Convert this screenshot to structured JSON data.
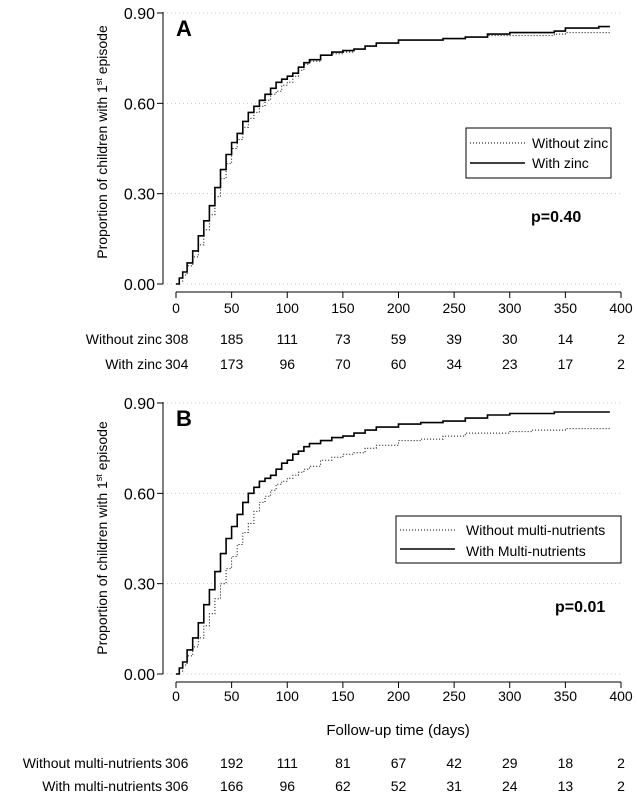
{
  "chart_data": [
    {
      "type": "line",
      "panel_label": "A",
      "ylabel": "Proportion of children with 1",
      "ylabel_sup": "st",
      "ylabel_tail": " episode",
      "xlabel": "",
      "xlim": [
        0,
        400
      ],
      "ylim": [
        0,
        0.9
      ],
      "xticks": [
        0,
        50,
        100,
        150,
        200,
        250,
        300,
        350,
        400
      ],
      "yticks": [
        0.0,
        0.3,
        0.6,
        0.9
      ],
      "ytick_labels": [
        "0.00",
        "0.30",
        "0.60",
        "0.90"
      ],
      "grid": "horizontal dotted",
      "legend_position": "center-right",
      "annotation": "p=0.40",
      "series": [
        {
          "name": "Without zinc",
          "style": "dotted",
          "x": [
            0,
            3,
            6,
            10,
            15,
            20,
            25,
            30,
            35,
            40,
            45,
            50,
            55,
            60,
            65,
            70,
            75,
            80,
            85,
            90,
            95,
            100,
            105,
            110,
            115,
            120,
            130,
            140,
            150,
            160,
            170,
            180,
            200,
            220,
            240,
            260,
            280,
            300,
            320,
            340,
            350,
            380,
            390
          ],
          "y": [
            0,
            0.01,
            0.03,
            0.06,
            0.09,
            0.13,
            0.18,
            0.23,
            0.29,
            0.35,
            0.4,
            0.45,
            0.48,
            0.52,
            0.55,
            0.57,
            0.59,
            0.61,
            0.63,
            0.64,
            0.66,
            0.67,
            0.69,
            0.71,
            0.73,
            0.74,
            0.76,
            0.765,
            0.77,
            0.78,
            0.79,
            0.8,
            0.81,
            0.81,
            0.815,
            0.82,
            0.825,
            0.825,
            0.825,
            0.83,
            0.835,
            0.835,
            0.835
          ]
        },
        {
          "name": "With zinc",
          "style": "solid",
          "x": [
            0,
            3,
            6,
            10,
            15,
            20,
            25,
            30,
            35,
            40,
            45,
            50,
            55,
            60,
            65,
            70,
            75,
            80,
            85,
            90,
            95,
            100,
            105,
            110,
            115,
            120,
            130,
            140,
            150,
            160,
            170,
            180,
            200,
            220,
            240,
            260,
            280,
            300,
            320,
            340,
            350,
            380,
            390
          ],
          "y": [
            0,
            0.02,
            0.04,
            0.07,
            0.11,
            0.16,
            0.21,
            0.26,
            0.32,
            0.38,
            0.43,
            0.47,
            0.5,
            0.54,
            0.57,
            0.59,
            0.61,
            0.63,
            0.65,
            0.67,
            0.68,
            0.69,
            0.7,
            0.72,
            0.735,
            0.745,
            0.76,
            0.77,
            0.775,
            0.78,
            0.79,
            0.8,
            0.81,
            0.81,
            0.815,
            0.82,
            0.83,
            0.835,
            0.835,
            0.84,
            0.85,
            0.855,
            0.855
          ]
        }
      ],
      "risk_table": {
        "x": [
          0,
          50,
          100,
          150,
          200,
          250,
          300,
          350,
          400
        ],
        "rows": [
          {
            "label": "Without zinc",
            "values": [
              "308",
              "185",
              "111",
              "73",
              "59",
              "39",
              "30",
              "14",
              "2"
            ]
          },
          {
            "label": "With zinc",
            "values": [
              "304",
              "173",
              "96",
              "70",
              "60",
              "34",
              "23",
              "17",
              "2"
            ]
          }
        ]
      }
    },
    {
      "type": "line",
      "panel_label": "B",
      "ylabel": "Proportion of children with 1",
      "ylabel_sup": "st",
      "ylabel_tail": " episode",
      "xlabel": "Follow-up time  (days)",
      "xlim": [
        0,
        400
      ],
      "ylim": [
        0,
        0.9
      ],
      "xticks": [
        0,
        50,
        100,
        150,
        200,
        250,
        300,
        350,
        400
      ],
      "yticks": [
        0.0,
        0.3,
        0.6,
        0.9
      ],
      "ytick_labels": [
        "0.00",
        "0.30",
        "0.60",
        "0.90"
      ],
      "grid": "horizontal dotted",
      "legend_position": "center-right",
      "annotation": "p=0.01",
      "series": [
        {
          "name": "Without multi-nutrients",
          "style": "dotted",
          "x": [
            0,
            3,
            6,
            10,
            15,
            20,
            25,
            30,
            35,
            40,
            45,
            50,
            55,
            60,
            65,
            70,
            75,
            80,
            85,
            90,
            95,
            100,
            105,
            110,
            115,
            120,
            130,
            140,
            150,
            160,
            170,
            180,
            200,
            220,
            240,
            260,
            280,
            300,
            320,
            340,
            350,
            380,
            390
          ],
          "y": [
            0,
            0.01,
            0.03,
            0.06,
            0.09,
            0.12,
            0.16,
            0.2,
            0.25,
            0.3,
            0.35,
            0.39,
            0.43,
            0.47,
            0.5,
            0.54,
            0.57,
            0.59,
            0.61,
            0.63,
            0.64,
            0.65,
            0.66,
            0.67,
            0.68,
            0.69,
            0.71,
            0.72,
            0.73,
            0.735,
            0.75,
            0.76,
            0.775,
            0.78,
            0.79,
            0.8,
            0.8,
            0.805,
            0.81,
            0.81,
            0.815,
            0.815,
            0.815
          ]
        },
        {
          "name": "With Multi-nutrients",
          "style": "solid",
          "x": [
            0,
            3,
            6,
            10,
            15,
            20,
            25,
            30,
            35,
            40,
            45,
            50,
            55,
            60,
            65,
            70,
            75,
            80,
            85,
            90,
            95,
            100,
            105,
            110,
            115,
            120,
            130,
            140,
            150,
            160,
            170,
            180,
            200,
            220,
            240,
            260,
            280,
            300,
            320,
            340,
            350,
            380,
            390
          ],
          "y": [
            0,
            0.02,
            0.04,
            0.08,
            0.12,
            0.17,
            0.23,
            0.28,
            0.34,
            0.4,
            0.45,
            0.49,
            0.53,
            0.57,
            0.6,
            0.62,
            0.64,
            0.65,
            0.66,
            0.68,
            0.7,
            0.71,
            0.73,
            0.74,
            0.755,
            0.765,
            0.775,
            0.785,
            0.79,
            0.8,
            0.81,
            0.82,
            0.83,
            0.835,
            0.84,
            0.85,
            0.86,
            0.865,
            0.865,
            0.87,
            0.87,
            0.87,
            0.87
          ]
        }
      ],
      "risk_table": {
        "x": [
          0,
          50,
          100,
          150,
          200,
          250,
          300,
          350,
          400
        ],
        "rows": [
          {
            "label": "Without multi-nutrients",
            "values": [
              "306",
              "192",
              "111",
              "81",
              "67",
              "42",
              "29",
              "18",
              "2"
            ]
          },
          {
            "label": "With multi-nutrients",
            "values": [
              "306",
              "166",
              "96",
              "62",
              "52",
              "31",
              "24",
              "13",
              "2"
            ]
          }
        ]
      }
    }
  ]
}
